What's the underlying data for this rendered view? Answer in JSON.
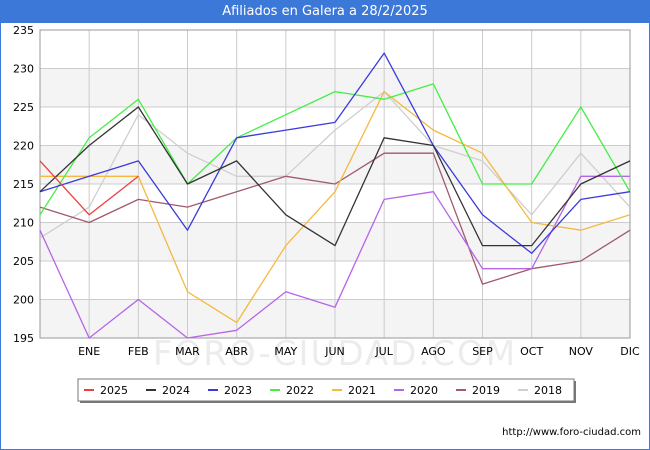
{
  "page": {
    "title": "Afiliados en Galera a 28/2/2025",
    "source": "http://www.foro-ciudad.com",
    "watermark": "FORO-CIUDAD.COM"
  },
  "colors": {
    "title_bar": "#3c78d8",
    "plot_band": "#f4f4f4",
    "grid": "#cccccc"
  },
  "chart_data": {
    "type": "line",
    "title": "Afiliados en Galera a 28/2/2025",
    "x_categories": [
      "",
      "ENE",
      "FEB",
      "MAR",
      "ABR",
      "MAY",
      "JUN",
      "JUL",
      "AGO",
      "SEP",
      "OCT",
      "NOV",
      "DIC"
    ],
    "ylim": [
      195,
      235
    ],
    "yticks": [
      195,
      200,
      205,
      210,
      215,
      220,
      225,
      230,
      235
    ],
    "grid": true,
    "legend_position": "bottom",
    "series": [
      {
        "name": "2025",
        "color": "#e8413f",
        "values": [
          218,
          211,
          216,
          null,
          null,
          null,
          null,
          null,
          null,
          null,
          null,
          null,
          null
        ]
      },
      {
        "name": "2024",
        "color": "#333333",
        "values": [
          214,
          220,
          225,
          215,
          218,
          211,
          207,
          221,
          220,
          207,
          207,
          215,
          218
        ]
      },
      {
        "name": "2023",
        "color": "#3b3bdc",
        "values": [
          214,
          216,
          218,
          209,
          221,
          222,
          223,
          232,
          220,
          211,
          206,
          213,
          214
        ]
      },
      {
        "name": "2022",
        "color": "#44ee44",
        "values": [
          211,
          221,
          226,
          215,
          221,
          224,
          227,
          226,
          228,
          215,
          215,
          225,
          214
        ]
      },
      {
        "name": "2021",
        "color": "#f5b942",
        "values": [
          216,
          216,
          216,
          201,
          197,
          207,
          214,
          227,
          222,
          219,
          210,
          209,
          211
        ]
      },
      {
        "name": "2020",
        "color": "#b565e8",
        "values": [
          209,
          195,
          200,
          195,
          196,
          201,
          199,
          213,
          214,
          204,
          204,
          216,
          216
        ]
      },
      {
        "name": "2019",
        "color": "#a05a6a",
        "values": [
          212,
          210,
          213,
          212,
          214,
          216,
          215,
          219,
          219,
          202,
          204,
          205,
          209
        ]
      },
      {
        "name": "2018",
        "color": "#cfcfcf",
        "values": [
          208,
          212,
          224,
          219,
          216,
          216,
          222,
          227,
          220,
          218,
          211,
          219,
          212
        ]
      }
    ]
  }
}
